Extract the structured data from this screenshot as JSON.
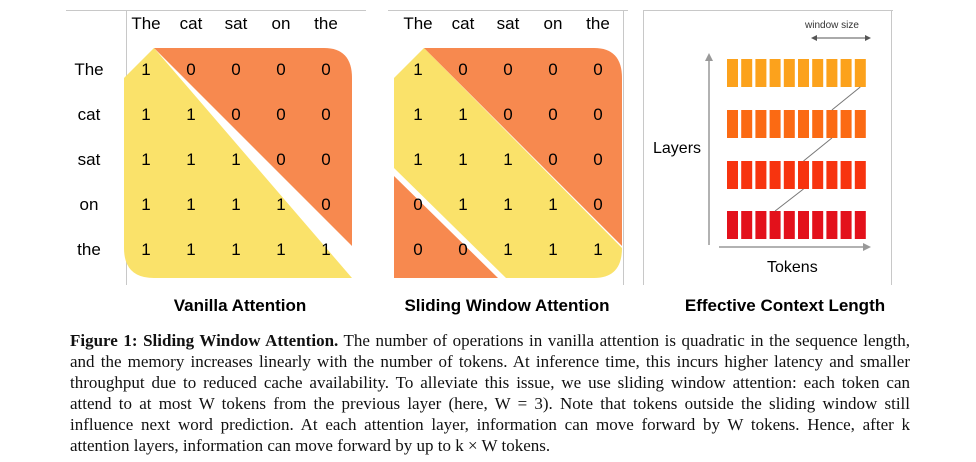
{
  "panels": {
    "vanilla": {
      "title": "Vanilla Attention",
      "col_tokens": [
        "The",
        "cat",
        "sat",
        "on",
        "the"
      ],
      "row_tokens": [
        "The",
        "cat",
        "sat",
        "on",
        "the"
      ],
      "matrix": [
        [
          "1",
          "0",
          "0",
          "0",
          "0"
        ],
        [
          "1",
          "1",
          "0",
          "0",
          "0"
        ],
        [
          "1",
          "1",
          "1",
          "0",
          "0"
        ],
        [
          "1",
          "1",
          "1",
          "1",
          "0"
        ],
        [
          "1",
          "1",
          "1",
          "1",
          "1"
        ]
      ]
    },
    "sliding": {
      "title": "Sliding Window Attention",
      "col_tokens": [
        "The",
        "cat",
        "sat",
        "on",
        "the"
      ],
      "matrix": [
        [
          "1",
          "0",
          "0",
          "0",
          "0"
        ],
        [
          "1",
          "1",
          "0",
          "0",
          "0"
        ],
        [
          "1",
          "1",
          "1",
          "0",
          "0"
        ],
        [
          "0",
          "1",
          "1",
          "1",
          "0"
        ],
        [
          "0",
          "0",
          "1",
          "1",
          "1"
        ]
      ]
    },
    "effective": {
      "title": "Effective Context Length",
      "window_label": "window size",
      "y_label": "Layers",
      "x_label": "Tokens",
      "layer_colors": [
        "#fca21c",
        "#fb6a13",
        "#f7340f",
        "#e3111b"
      ]
    }
  },
  "caption": {
    "label": "Figure 1: Sliding Window Attention.",
    "text": " The number of operations in vanilla attention is quadratic in the sequence length, and the memory increases linearly with the number of tokens. At inference time, this incurs higher latency and smaller throughput due to reduced cache availability. To alleviate this issue, we use sliding window attention: each token can attend to at most W tokens from the previous layer (here, W = 3). Note that tokens outside the sliding window still influence next word prediction. At each attention layer, information can move forward by W tokens. Hence, after k attention layers, information can move forward by up to k × W tokens."
  },
  "colors": {
    "yellow": "#fae26a",
    "orange": "#f7894f",
    "border": "#c8c8c8"
  }
}
